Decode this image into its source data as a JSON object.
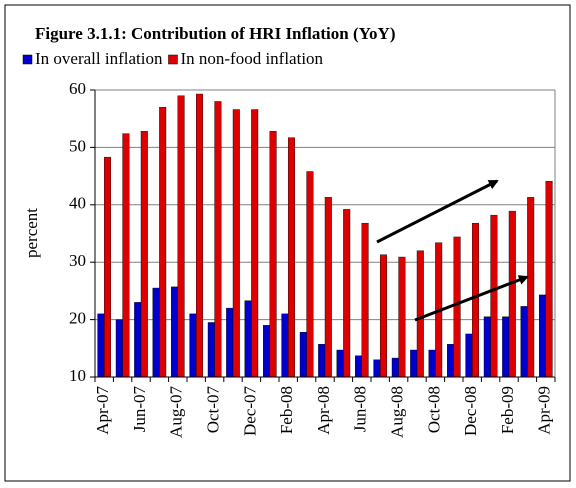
{
  "chart_data": {
    "type": "bar",
    "title": "Figure 3.1.1: Contribution of HRI Inflation (YoY)",
    "y_label": "percent",
    "categories": [
      "Apr-07",
      null,
      "Jun-07",
      null,
      "Aug-07",
      null,
      "Oct-07",
      null,
      "Dec-07",
      null,
      "Feb-08",
      null,
      "Apr-08",
      null,
      "Jun-08",
      null,
      "Aug-08",
      null,
      "Oct-08",
      null,
      "Dec-08",
      null,
      "Feb-09",
      null,
      "Apr-09"
    ],
    "series": [
      {
        "name": "In overall inflation",
        "color": "#0000cc",
        "values": [
          21,
          20,
          23,
          25.5,
          25.7,
          21,
          19.5,
          22,
          23.3,
          19,
          21,
          17.8,
          15.7,
          14.7,
          13.7,
          13,
          13.3,
          14.7,
          14.7,
          15.7,
          17.5,
          20.5,
          20.5,
          22.3,
          24.3
        ]
      },
      {
        "name": "In non-food inflation",
        "color": "#dd0000",
        "values": [
          48.3,
          52.4,
          52.8,
          57,
          59,
          59.3,
          58,
          56.6,
          56.6,
          52.8,
          51.7,
          45.8,
          41.3,
          39.2,
          36.8,
          31.3,
          30.9,
          32,
          33.4,
          34.4,
          36.8,
          38.2,
          38.9,
          41.3,
          44.1
        ]
      }
    ],
    "ylim": [
      10,
      60
    ],
    "yticks": [
      10,
      20,
      30,
      40,
      50,
      60
    ],
    "grid": true
  }
}
